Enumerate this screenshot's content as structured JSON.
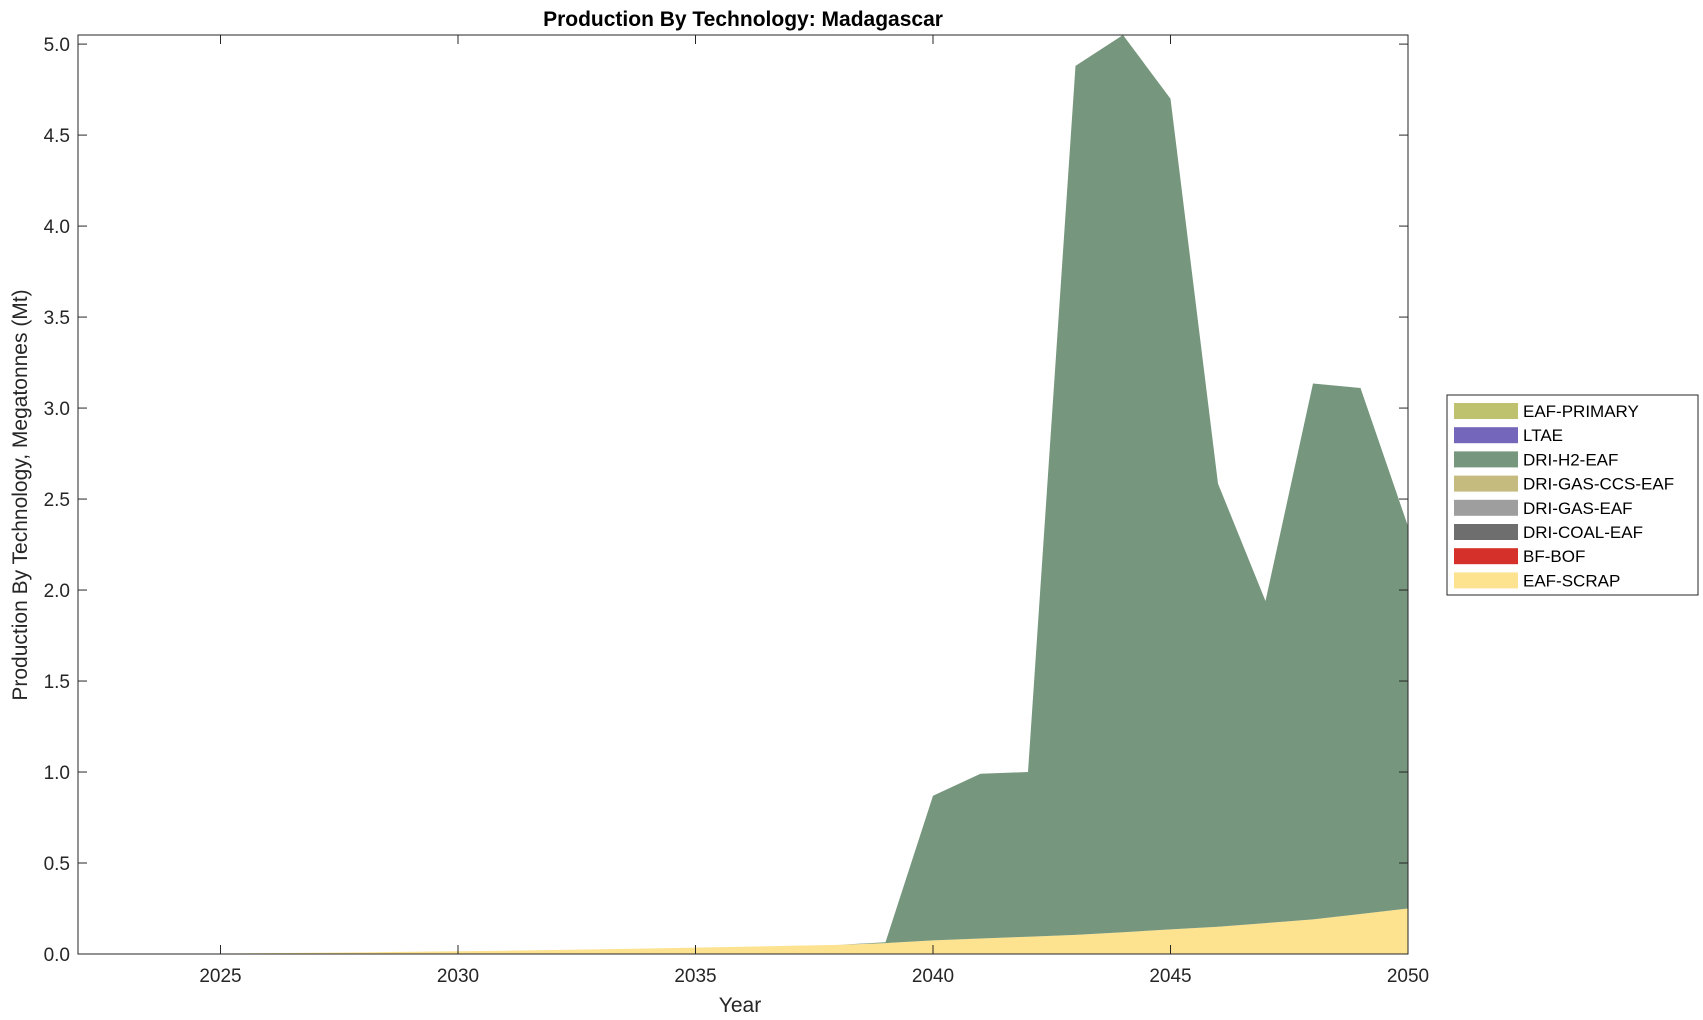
{
  "chart_data": {
    "type": "area",
    "stacked": true,
    "title": "Production By Technology: Madagascar",
    "xlabel": "Year",
    "ylabel": "Production By Technology, Megatonnes (Mt)",
    "xlim": [
      2022,
      2050
    ],
    "ylim": [
      0,
      5.05
    ],
    "xticks": [
      2025,
      2030,
      2035,
      2040,
      2045,
      2050
    ],
    "yticks": [
      "0.0",
      "0.5",
      "1.0",
      "1.5",
      "2.0",
      "2.5",
      "3.0",
      "3.5",
      "4.0",
      "4.5",
      "5.0"
    ],
    "legend_position": "right",
    "x": [
      2022,
      2023,
      2024,
      2025,
      2026,
      2027,
      2028,
      2029,
      2030,
      2031,
      2032,
      2033,
      2034,
      2035,
      2036,
      2037,
      2038,
      2039,
      2040,
      2041,
      2042,
      2043,
      2044,
      2045,
      2046,
      2047,
      2048,
      2049,
      2050
    ],
    "series": [
      {
        "name": "EAF-SCRAP",
        "color": "#fde290",
        "values": [
          0.0,
          0.001,
          0.002,
          0.003,
          0.005,
          0.007,
          0.009,
          0.012,
          0.015,
          0.018,
          0.022,
          0.026,
          0.03,
          0.035,
          0.04,
          0.045,
          0.05,
          0.06,
          0.075,
          0.085,
          0.095,
          0.105,
          0.12,
          0.135,
          0.15,
          0.17,
          0.19,
          0.22,
          0.25
        ]
      },
      {
        "name": "BF-BOF",
        "color": "#d6302a",
        "values": [
          0,
          0,
          0,
          0,
          0,
          0,
          0,
          0,
          0,
          0,
          0,
          0,
          0,
          0,
          0,
          0,
          0,
          0,
          0,
          0,
          0,
          0,
          0,
          0,
          0,
          0,
          0,
          0,
          0
        ]
      },
      {
        "name": "DRI-COAL-EAF",
        "color": "#6e6e6e",
        "values": [
          0,
          0,
          0,
          0,
          0,
          0,
          0,
          0,
          0,
          0,
          0,
          0,
          0,
          0,
          0,
          0,
          0,
          0,
          0,
          0,
          0,
          0,
          0,
          0,
          0,
          0,
          0,
          0,
          0
        ]
      },
      {
        "name": "DRI-GAS-EAF",
        "color": "#9e9e9e",
        "values": [
          0,
          0,
          0,
          0,
          0,
          0,
          0,
          0,
          0,
          0,
          0,
          0,
          0,
          0,
          0,
          0,
          0,
          0,
          0,
          0,
          0,
          0,
          0,
          0,
          0,
          0,
          0,
          0,
          0
        ]
      },
      {
        "name": "DRI-GAS-CCS-EAF",
        "color": "#c6bb7e",
        "values": [
          0,
          0,
          0,
          0,
          0,
          0,
          0,
          0,
          0,
          0,
          0,
          0,
          0,
          0,
          0,
          0,
          0,
          0,
          0,
          0,
          0,
          0,
          0,
          0,
          0,
          0,
          0,
          0,
          0
        ]
      },
      {
        "name": "DRI-H2-EAF",
        "color": "#76977d",
        "values": [
          0,
          0,
          0,
          0,
          0,
          0,
          0,
          0,
          0,
          0,
          0,
          0,
          0,
          0,
          0,
          0,
          0,
          0.005,
          0.795,
          0.905,
          0.905,
          4.775,
          4.93,
          4.565,
          2.435,
          1.77,
          2.945,
          2.89,
          2.1
        ]
      },
      {
        "name": "LTAE",
        "color": "#7466bb",
        "values": [
          0,
          0,
          0,
          0,
          0,
          0,
          0,
          0,
          0,
          0,
          0,
          0,
          0,
          0,
          0,
          0,
          0,
          0,
          0,
          0,
          0,
          0,
          0,
          0,
          0,
          0,
          0,
          0,
          0
        ]
      },
      {
        "name": "EAF-PRIMARY",
        "color": "#bec26e",
        "values": [
          0,
          0,
          0,
          0,
          0,
          0,
          0,
          0,
          0,
          0,
          0,
          0,
          0,
          0,
          0,
          0,
          0,
          0,
          0,
          0,
          0,
          0,
          0,
          0,
          0,
          0,
          0,
          0,
          0
        ]
      }
    ],
    "legend_order": [
      "EAF-PRIMARY",
      "LTAE",
      "DRI-H2-EAF",
      "DRI-GAS-CCS-EAF",
      "DRI-GAS-EAF",
      "DRI-COAL-EAF",
      "BF-BOF",
      "EAF-SCRAP"
    ]
  }
}
